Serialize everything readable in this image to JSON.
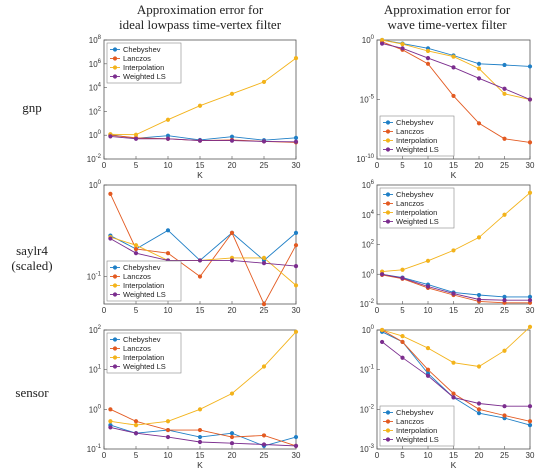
{
  "column_titles": [
    [
      "Approximation error for",
      "ideal lowpass time-vertex filter"
    ],
    [
      "Approximation error for",
      "wave time-vertex filter"
    ]
  ],
  "row_labels": [
    [
      "gnp"
    ],
    [
      "saylr4",
      "(scaled)"
    ],
    [
      "sensor"
    ]
  ],
  "colors": {
    "Chebyshev": "#1f7fc6",
    "Lanczos": "#e35a21",
    "Interpolation": "#f3b31b",
    "Weighted LS": "#7b2d8e"
  },
  "chart_data": [
    {
      "type": "line",
      "log_y": true,
      "xlabel": "K",
      "ylabel": "",
      "xlim": [
        0,
        30
      ],
      "ylim_exp": [
        -2,
        8
      ],
      "xticks": [
        0,
        5,
        10,
        15,
        20,
        25,
        30
      ],
      "yticks_exp": [
        -2,
        0,
        2,
        4,
        6,
        8
      ],
      "x": [
        1,
        5,
        10,
        15,
        20,
        25,
        30
      ],
      "legend": "top-left",
      "series": [
        {
          "name": "Chebyshev",
          "values": [
            1.1,
            0.55,
            0.9,
            0.4,
            0.75,
            0.38,
            0.6
          ]
        },
        {
          "name": "Lanczos",
          "values": [
            1.0,
            0.6,
            0.5,
            0.35,
            0.4,
            0.3,
            0.25
          ]
        },
        {
          "name": "Interpolation",
          "values": [
            1.2,
            1.1,
            20,
            300,
            3000,
            30000,
            3000000
          ]
        },
        {
          "name": "Weighted LS",
          "values": [
            0.8,
            0.5,
            0.5,
            0.35,
            0.35,
            0.3,
            0.28
          ]
        }
      ]
    },
    {
      "type": "line",
      "log_y": true,
      "xlabel": "K",
      "ylabel": "",
      "xlim": [
        0,
        30
      ],
      "ylim_exp": [
        -10,
        0
      ],
      "xticks": [
        0,
        5,
        10,
        15,
        20,
        25,
        30
      ],
      "yticks_exp": [
        -10,
        -5,
        0
      ],
      "x": [
        1,
        5,
        10,
        15,
        20,
        25,
        30
      ],
      "legend": "bottom-left",
      "series": [
        {
          "name": "Chebyshev",
          "values": [
            1.0,
            0.5,
            0.2,
            0.05,
            0.01,
            0.008,
            0.006
          ]
        },
        {
          "name": "Lanczos",
          "values": [
            0.7,
            0.15,
            0.01,
            2e-05,
            1e-07,
            5e-09,
            2.5e-09
          ]
        },
        {
          "name": "Interpolation",
          "values": [
            1.0,
            0.45,
            0.12,
            0.04,
            0.004,
            3e-05,
            1e-05
          ]
        },
        {
          "name": "Weighted LS",
          "values": [
            0.5,
            0.2,
            0.03,
            0.005,
            0.0006,
            8e-05,
            1e-05
          ]
        }
      ]
    },
    {
      "type": "line",
      "log_y": true,
      "xlabel": "",
      "ylabel": "",
      "xlim": [
        0,
        30
      ],
      "ylim_exp": [
        -1.3,
        0
      ],
      "xticks": [
        0,
        5,
        10,
        15,
        20,
        25,
        30
      ],
      "yticks_exp": [
        -1,
        0
      ],
      "x": [
        1,
        5,
        10,
        15,
        20,
        25,
        30
      ],
      "legend": "bottom-left",
      "series": [
        {
          "name": "Chebyshev",
          "values": [
            0.28,
            0.2,
            0.32,
            0.15,
            0.3,
            0.15,
            0.3
          ]
        },
        {
          "name": "Lanczos",
          "values": [
            0.8,
            0.2,
            0.18,
            0.1,
            0.3,
            0.05,
            0.22
          ]
        },
        {
          "name": "Interpolation",
          "values": [
            0.27,
            0.22,
            0.15,
            0.15,
            0.16,
            0.16,
            0.08
          ]
        },
        {
          "name": "Weighted LS",
          "values": [
            0.26,
            0.18,
            0.15,
            0.15,
            0.15,
            0.14,
            0.13
          ]
        }
      ]
    },
    {
      "type": "line",
      "log_y": true,
      "xlabel": "",
      "ylabel": "",
      "xlim": [
        0,
        30
      ],
      "ylim_exp": [
        -2,
        6
      ],
      "xticks": [
        0,
        5,
        10,
        15,
        20,
        25,
        30
      ],
      "yticks_exp": [
        -2,
        0,
        2,
        4,
        6
      ],
      "x": [
        1,
        5,
        10,
        15,
        20,
        25,
        30
      ],
      "legend": "top-left",
      "series": [
        {
          "name": "Chebyshev",
          "values": [
            1.0,
            0.6,
            0.2,
            0.06,
            0.04,
            0.03,
            0.03
          ]
        },
        {
          "name": "Lanczos",
          "values": [
            0.9,
            0.5,
            0.12,
            0.04,
            0.015,
            0.012,
            0.012
          ]
        },
        {
          "name": "Interpolation",
          "values": [
            1.5,
            2,
            8,
            40,
            300,
            10000,
            300000
          ]
        },
        {
          "name": "Weighted LS",
          "values": [
            1.0,
            0.55,
            0.15,
            0.05,
            0.02,
            0.018,
            0.018
          ]
        }
      ]
    },
    {
      "type": "line",
      "log_y": true,
      "xlabel": "K",
      "ylabel": "",
      "xlim": [
        0,
        30
      ],
      "ylim_exp": [
        -1,
        2
      ],
      "xticks": [
        0,
        5,
        10,
        15,
        20,
        25,
        30
      ],
      "yticks_exp": [
        -1,
        0,
        1,
        2
      ],
      "x": [
        1,
        5,
        10,
        15,
        20,
        25,
        30
      ],
      "legend": "top-left",
      "series": [
        {
          "name": "Chebyshev",
          "values": [
            0.4,
            0.25,
            0.3,
            0.2,
            0.25,
            0.12,
            0.2
          ]
        },
        {
          "name": "Lanczos",
          "values": [
            1.0,
            0.5,
            0.3,
            0.3,
            0.2,
            0.22,
            0.12
          ]
        },
        {
          "name": "Interpolation",
          "values": [
            0.5,
            0.4,
            0.5,
            1.0,
            2.5,
            12,
            90
          ]
        },
        {
          "name": "Weighted LS",
          "values": [
            0.35,
            0.25,
            0.2,
            0.15,
            0.14,
            0.13,
            0.12
          ]
        }
      ]
    },
    {
      "type": "line",
      "log_y": true,
      "xlabel": "K",
      "ylabel": "",
      "xlim": [
        0,
        30
      ],
      "ylim_exp": [
        -3,
        0
      ],
      "xticks": [
        0,
        5,
        10,
        15,
        20,
        25,
        30
      ],
      "yticks_exp": [
        -3,
        -2,
        -1,
        0
      ],
      "x": [
        1,
        5,
        10,
        15,
        20,
        25,
        30
      ],
      "legend": "bottom-left",
      "series": [
        {
          "name": "Chebyshev",
          "values": [
            0.9,
            0.5,
            0.08,
            0.02,
            0.008,
            0.006,
            0.004
          ]
        },
        {
          "name": "Lanczos",
          "values": [
            1.0,
            0.5,
            0.1,
            0.025,
            0.01,
            0.007,
            0.005
          ]
        },
        {
          "name": "Interpolation",
          "values": [
            1.0,
            0.7,
            0.35,
            0.15,
            0.12,
            0.3,
            1.2
          ]
        },
        {
          "name": "Weighted LS",
          "values": [
            0.5,
            0.2,
            0.07,
            0.02,
            0.014,
            0.012,
            0.012
          ]
        }
      ]
    }
  ]
}
